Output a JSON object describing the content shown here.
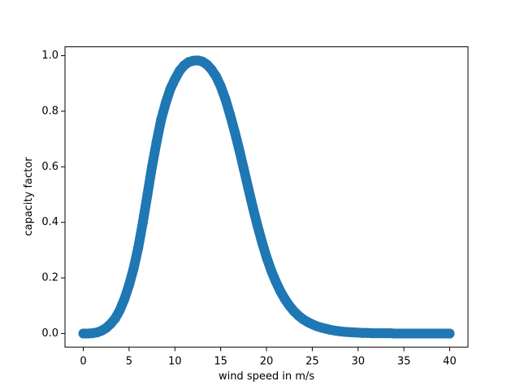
{
  "chart_data": {
    "type": "scatter",
    "xlabel": "wind speed in m/s",
    "ylabel": "capacity factor",
    "series": [
      {
        "color": "#1f77b4",
        "x": [
          0,
          0.5,
          1,
          1.5,
          2,
          2.5,
          3,
          3.5,
          4,
          4.5,
          5,
          5.5,
          6,
          6.5,
          7,
          7.5,
          8,
          8.5,
          9,
          9.5,
          10,
          10.5,
          11,
          11.5,
          12,
          12.5,
          13,
          13.5,
          14,
          14.5,
          15,
          15.5,
          16,
          16.5,
          17,
          17.5,
          18,
          18.5,
          19,
          19.5,
          20,
          20.5,
          21,
          21.5,
          22,
          22.5,
          23,
          23.5,
          24,
          24.5,
          25,
          25.5,
          26,
          26.5,
          27,
          27.5,
          28,
          28.5,
          29,
          29.5,
          30,
          30.5,
          31,
          31.5,
          32,
          32.5,
          33,
          33.5,
          34,
          34.5,
          35,
          35.5,
          36,
          36.5,
          37,
          37.5,
          38,
          38.5,
          39,
          39.5,
          40
        ],
        "values": [
          0,
          0,
          0.001,
          0.004,
          0.01,
          0.02,
          0.035,
          0.055,
          0.085,
          0.125,
          0.175,
          0.235,
          0.31,
          0.4,
          0.5,
          0.6,
          0.69,
          0.77,
          0.83,
          0.88,
          0.915,
          0.945,
          0.965,
          0.977,
          0.982,
          0.983,
          0.979,
          0.968,
          0.95,
          0.925,
          0.89,
          0.845,
          0.79,
          0.73,
          0.665,
          0.595,
          0.525,
          0.455,
          0.39,
          0.33,
          0.275,
          0.228,
          0.188,
          0.153,
          0.124,
          0.1,
          0.08,
          0.064,
          0.051,
          0.041,
          0.033,
          0.026,
          0.021,
          0.017,
          0.013,
          0.01,
          0.008,
          0.006,
          0.005,
          0.004,
          0.003,
          0.002,
          0.002,
          0.001,
          0.001,
          0.001,
          0.001,
          0.001,
          0,
          0,
          0,
          0,
          0,
          0,
          0,
          0,
          0,
          0,
          0,
          0,
          0
        ]
      }
    ],
    "xlim": [
      -2,
      42
    ],
    "xticks": [
      0,
      5,
      10,
      15,
      20,
      25,
      30,
      35,
      40
    ],
    "ylim": [
      -0.049,
      1.032
    ],
    "yticks": [
      {
        "value": 0,
        "label": "0.0"
      },
      0.2,
      0.4,
      0.6,
      0.8,
      {
        "value": 1,
        "label": "1.0"
      }
    ]
  }
}
